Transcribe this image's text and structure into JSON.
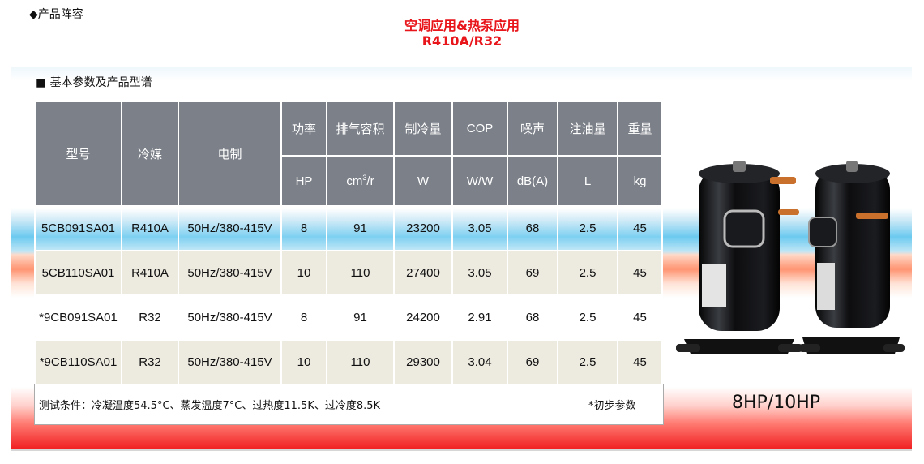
{
  "top_label": "◆产品阵容",
  "title_line1": "空调应用&热泵应用",
  "title_line2": "R410A/R32",
  "section_heading": "■  基本参数及产品型谱",
  "headers": {
    "model": "型号",
    "refrigerant": "冷媒",
    "electric": "电制",
    "power": "功率",
    "displacement": "排气容积",
    "capacity": "制冷量",
    "cop": "COP",
    "noise": "噪声",
    "oil": "注油量",
    "weight": "重量"
  },
  "units": {
    "power": "HP",
    "displacement_base": "cm",
    "displacement_sup": "3",
    "displacement_tail": "/r",
    "capacity": "W",
    "cop": "W/W",
    "noise": "dB(A)",
    "oil": "L",
    "weight": "kg"
  },
  "rows": [
    {
      "model": "5CB091SA01",
      "refrigerant": "R410A",
      "electric": "50Hz/380-415V",
      "power": "8",
      "displacement": "91",
      "capacity": "23200",
      "cop": "3.05",
      "noise": "68",
      "oil": "2.5",
      "weight": "45"
    },
    {
      "model": "5CB110SA01",
      "refrigerant": "R410A",
      "electric": "50Hz/380-415V",
      "power": "10",
      "displacement": "110",
      "capacity": "27400",
      "cop": "3.05",
      "noise": "69",
      "oil": "2.5",
      "weight": "45"
    },
    {
      "model": "*9CB091SA01",
      "refrigerant": "R32",
      "electric": "50Hz/380-415V",
      "power": "8",
      "displacement": "91",
      "capacity": "24200",
      "cop": "2.91",
      "noise": "68",
      "oil": "2.5",
      "weight": "45"
    },
    {
      "model": "*9CB110SA01",
      "refrigerant": "R32",
      "electric": "50Hz/380-415V",
      "power": "10",
      "displacement": "110",
      "capacity": "29300",
      "cop": "3.04",
      "noise": "69",
      "oil": "2.5",
      "weight": "45"
    }
  ],
  "test_conditions": "测试条件：冷凝温度54.5°C、蒸发温度7°C、过热度11.5K、过冷度8.5K",
  "preliminary_note": "*初步参数",
  "model_size": "8HP/10HP",
  "colors": {
    "title": "#e8151b",
    "header_bg": "#7c8089",
    "alt_row_bg": "#edeae0"
  }
}
